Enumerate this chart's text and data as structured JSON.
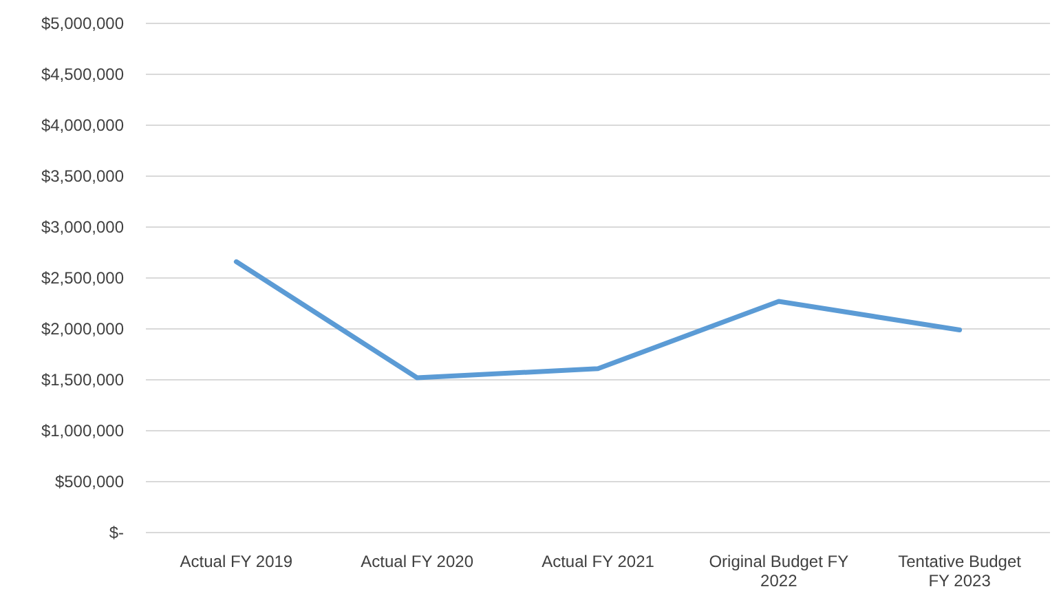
{
  "chart_data": {
    "type": "line",
    "categories": [
      "Actual FY 2019",
      "Actual FY 2020",
      "Actual FY 2021",
      "Original Budget FY 2022",
      "Tentative Budget FY 2023"
    ],
    "series": [
      {
        "color": "#5b9bd5",
        "values": [
          2660000,
          1520000,
          1610000,
          2270000,
          1990000
        ]
      }
    ],
    "ylim": [
      0,
      5000000
    ],
    "yticks": [
      {
        "value": 0,
        "label": "$-"
      },
      {
        "value": 500000,
        "label": "$500,000"
      },
      {
        "value": 1000000,
        "label": "$1,000,000"
      },
      {
        "value": 1500000,
        "label": "$1,500,000"
      },
      {
        "value": 2000000,
        "label": "$2,000,000"
      },
      {
        "value": 2500000,
        "label": "$2,500,000"
      },
      {
        "value": 3000000,
        "label": "$3,000,000"
      },
      {
        "value": 3500000,
        "label": "$3,500,000"
      },
      {
        "value": 4000000,
        "label": "$4,000,000"
      },
      {
        "value": 4500000,
        "label": "$4,500,000"
      },
      {
        "value": 5000000,
        "label": "$5,000,000"
      }
    ],
    "grid": "y",
    "marker": "none",
    "line_style": "solid"
  }
}
